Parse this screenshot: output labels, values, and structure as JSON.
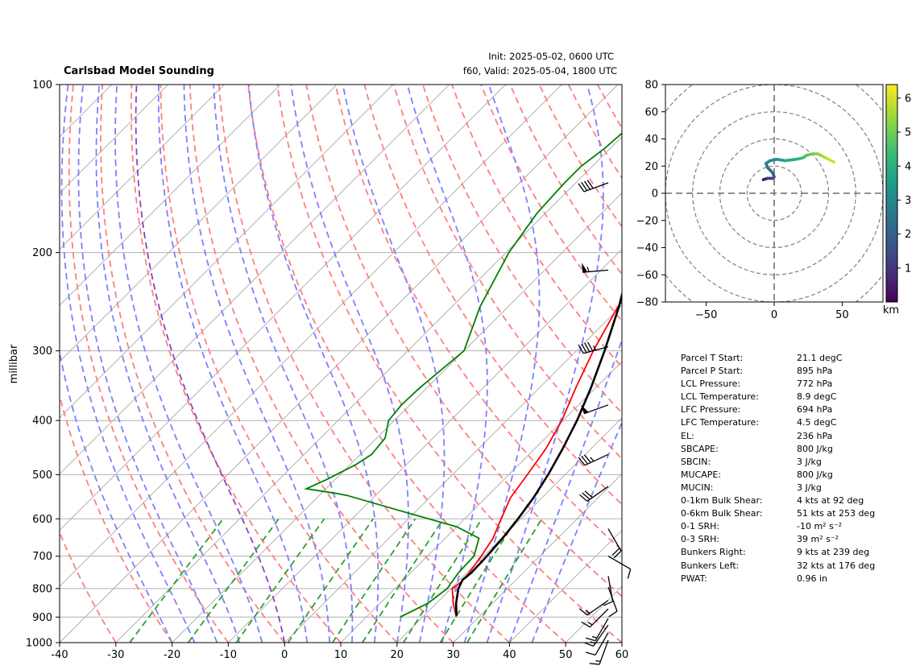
{
  "header": {
    "title": "Carlsbad Model Sounding",
    "init": "Init: 2025-05-02, 0600 UTC",
    "valid": "f60, Valid: 2025-05-04, 1800 UTC"
  },
  "colors": {
    "temperature": "#ff0000",
    "dewpoint": "#008000",
    "parcel": "#000000",
    "dry_adiabat": "#ff7f7f",
    "moist_adiabat": "#7f7fff",
    "mixing_ratio": "#2ca02c",
    "freezing_adiabat": "#8a43c2",
    "grid": "#b0b0b0"
  },
  "chart_data": [
    {
      "type": "line",
      "chart": "skew-t",
      "ylabel": "millibar",
      "xlim": [
        -40,
        60
      ],
      "ylim": [
        1000,
        100
      ],
      "y_scale": "log",
      "x_ticks": [
        -40,
        -30,
        -20,
        -10,
        0,
        10,
        20,
        30,
        40,
        50,
        60
      ],
      "y_ticks": [
        1000,
        900,
        800,
        700,
        600,
        500,
        400,
        300,
        200,
        100
      ],
      "grid": true,
      "series": [
        {
          "key": "temperature",
          "points": [
            [
              900,
              26
            ],
            [
              850,
              23
            ],
            [
              800,
              20.2
            ],
            [
              780,
              20.6
            ],
            [
              750,
              20.4
            ],
            [
              700,
              19.6
            ],
            [
              650,
              18.5
            ],
            [
              600,
              16.5
            ],
            [
              550,
              14.4
            ],
            [
              500,
              13.3
            ],
            [
              450,
              12
            ],
            [
              400,
              9.8
            ],
            [
              350,
              6.5
            ],
            [
              300,
              3
            ],
            [
              250,
              -0.5
            ],
            [
              230,
              -1
            ],
            [
              200,
              -1.6
            ],
            [
              170,
              1
            ],
            [
              150,
              5
            ],
            [
              140,
              10
            ],
            [
              130,
              15
            ],
            [
              120,
              22
            ],
            [
              110,
              29
            ],
            [
              100,
              35
            ]
          ]
        },
        {
          "key": "dewpoint",
          "points": [
            [
              900,
              16
            ],
            [
              850,
              18.5
            ],
            [
              800,
              19.3
            ],
            [
              750,
              18.5
            ],
            [
              700,
              18.3
            ],
            [
              650,
              16
            ],
            [
              620,
              10
            ],
            [
              580,
              -3
            ],
            [
              545,
              -15
            ],
            [
              540,
              -17.5
            ],
            [
              530,
              -23.5
            ],
            [
              510,
              -21.5
            ],
            [
              480,
              -19
            ],
            [
              460,
              -18
            ],
            [
              430,
              -18.5
            ],
            [
              400,
              -21
            ],
            [
              375,
              -21.5
            ],
            [
              350,
              -21.3
            ],
            [
              300,
              -20
            ],
            [
              250,
              -25
            ],
            [
              200,
              -29.5
            ],
            [
              170,
              -31.5
            ],
            [
              150,
              -32
            ],
            [
              140,
              -32
            ],
            [
              130,
              -31
            ],
            [
              120,
              -30.5
            ],
            [
              110,
              -30.5
            ],
            [
              100,
              -27
            ]
          ]
        },
        {
          "key": "parcel",
          "points": [
            [
              895,
              25.8
            ],
            [
              850,
              23.5
            ],
            [
              800,
              21.3
            ],
            [
              772,
              20.5
            ],
            [
              750,
              20.8
            ],
            [
              700,
              20.6
            ],
            [
              650,
              20.2
            ],
            [
              600,
              19.5
            ],
            [
              550,
              18.5
            ],
            [
              500,
              17
            ],
            [
              450,
              15
            ],
            [
              400,
              12.5
            ],
            [
              350,
              9.2
            ],
            [
              300,
              5
            ],
            [
              250,
              -0.3
            ],
            [
              200,
              -7.5
            ],
            [
              150,
              -16
            ],
            [
              130,
              -20
            ],
            [
              110,
              -26
            ],
            [
              100,
              -31
            ]
          ]
        }
      ],
      "wind_barbs": [
        {
          "p": 990,
          "dir": 200,
          "spd": 15
        },
        {
          "p": 960,
          "dir": 210,
          "spd": 10
        },
        {
          "p": 930,
          "dir": 215,
          "spd": 15
        },
        {
          "p": 905,
          "dir": 210,
          "spd": 15
        },
        {
          "p": 870,
          "dir": 225,
          "spd": 15
        },
        {
          "p": 840,
          "dir": 235,
          "spd": 15
        },
        {
          "p": 795,
          "dir": 160,
          "spd": 10
        },
        {
          "p": 760,
          "dir": 170,
          "spd": 10
        },
        {
          "p": 700,
          "dir": 120,
          "spd": 10
        },
        {
          "p": 625,
          "dir": 150,
          "spd": 20
        },
        {
          "p": 525,
          "dir": 235,
          "spd": 30
        },
        {
          "p": 460,
          "dir": 245,
          "spd": 35
        },
        {
          "p": 375,
          "dir": 250,
          "spd": 50
        },
        {
          "p": 295,
          "dir": 255,
          "spd": 45
        },
        {
          "p": 215,
          "dir": 265,
          "spd": 55
        },
        {
          "p": 150,
          "dir": 250,
          "spd": 40
        }
      ]
    },
    {
      "type": "line",
      "chart": "hodograph",
      "xlim": [
        -80,
        80
      ],
      "ylim": [
        -80,
        80
      ],
      "x_ticks": [
        -50,
        0,
        50
      ],
      "y_ticks": [
        80,
        60,
        40,
        20,
        0,
        -20,
        -40,
        -60,
        -80
      ],
      "ring_spacing": 20,
      "colorbar_label": "km",
      "colorbar_ticks": [
        1,
        2,
        3,
        4,
        5,
        6
      ],
      "colorbar_range": [
        0,
        6.4
      ],
      "colorscale": "viridis",
      "points": [
        [
          -8,
          10,
          0.3
        ],
        [
          -5,
          11,
          0.7
        ],
        [
          -1,
          11,
          1.2
        ],
        [
          0,
          12,
          1.6
        ],
        [
          -1,
          15,
          2.0
        ],
        [
          -3,
          17,
          2.2
        ],
        [
          -5,
          19,
          2.4
        ],
        [
          -6,
          22,
          2.7
        ],
        [
          -3,
          24,
          3.0
        ],
        [
          2,
          25,
          3.3
        ],
        [
          8,
          24,
          3.6
        ],
        [
          16,
          25,
          4.0
        ],
        [
          21,
          26,
          4.3
        ],
        [
          24,
          28,
          4.6
        ],
        [
          28,
          29,
          4.9
        ],
        [
          32,
          29,
          5.2
        ],
        [
          36,
          27,
          5.5
        ],
        [
          40,
          25,
          5.8
        ],
        [
          44,
          23,
          6.1
        ]
      ]
    }
  ],
  "params": [
    {
      "label": "Parcel T Start:",
      "value": "21.1 degC"
    },
    {
      "label": "Parcel P Start:",
      "value": "895 hPa"
    },
    {
      "label": "LCL Pressure:",
      "value": "772 hPa"
    },
    {
      "label": "LCL Temperature:",
      "value": "8.9 degC"
    },
    {
      "label": "LFC Pressure:",
      "value": "694 hPa"
    },
    {
      "label": "LFC Temperature:",
      "value": "4.5 degC"
    },
    {
      "label": "EL:",
      "value": "236 hPa"
    },
    {
      "label": "SBCAPE:",
      "value": "800 J/kg"
    },
    {
      "label": "SBCIN:",
      "value": "3 J/kg"
    },
    {
      "label": "MUCAPE:",
      "value": "800 J/kg"
    },
    {
      "label": "MUCIN:",
      "value": "3 J/kg"
    },
    {
      "label": "0-1km Bulk Shear:",
      "value": "4 kts at 92 deg"
    },
    {
      "label": "0-6km Bulk Shear:",
      "value": "51 kts at 253 deg"
    },
    {
      "label": "0-1 SRH:",
      "value": "-10 m² s⁻²"
    },
    {
      "label": "0-3 SRH:",
      "value": "39 m² s⁻²"
    },
    {
      "label": "Bunkers Right:",
      "value": "9 kts at 239 deg"
    },
    {
      "label": "Bunkers Left:",
      "value": "32 kts at 176 deg"
    },
    {
      "label": "PWAT:",
      "value": "0.96 in"
    }
  ]
}
